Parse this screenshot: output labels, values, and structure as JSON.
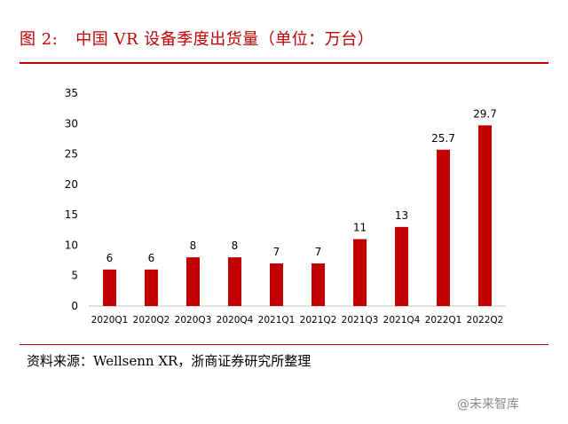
{
  "title": {
    "number": "图 2:",
    "text": "中国 VR 设备季度出货量（单位：万台）"
  },
  "source": "资料来源：Wellsenn XR，浙商证券研究所整理",
  "watermark": "@未来智库",
  "colors": {
    "accent": "#c00000",
    "bar": "#c00000",
    "axis": "#bfbfbf"
  },
  "chart_data": {
    "type": "bar",
    "categories": [
      "2020Q1",
      "2020Q2",
      "2020Q3",
      "2020Q4",
      "2021Q1",
      "2021Q2",
      "2021Q3",
      "2021Q4",
      "2022Q1",
      "2022Q2"
    ],
    "values": [
      6,
      6,
      8,
      8,
      7,
      7,
      11,
      13,
      25.7,
      29.7
    ],
    "data_labels": [
      "6",
      "6",
      "8",
      "8",
      "7",
      "7",
      "11",
      "13",
      "25.7",
      "29.7"
    ],
    "yticks": [
      "0",
      "5",
      "10",
      "15",
      "20",
      "25",
      "30",
      "35"
    ],
    "ylim": [
      0,
      35
    ],
    "grid": false,
    "legend": "none"
  }
}
